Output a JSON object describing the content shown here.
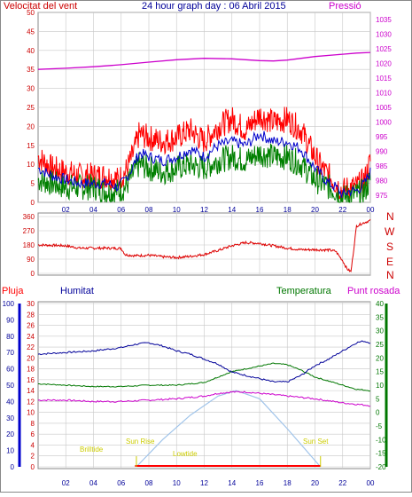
{
  "header": {
    "wind_title": "Velocitat del vent",
    "date_title": "24 hour graph day : 06 Abril 2015",
    "pressure_title": "Pressió"
  },
  "footer": {
    "rain_label": "Pluja",
    "humidity_label": "Humitat",
    "temp_label": "Temperatura",
    "dew_label": "Punt rosada"
  },
  "annotations": {
    "sunrise": "Sun Rise",
    "sunset": "Sun Set",
    "moonrise": "Brilltide",
    "moonset": "Lowtide"
  },
  "colors": {
    "wind_gust": "#ff0000",
    "wind_avg": "#0000cc",
    "wind_min": "#008000",
    "pressure": "#cc00cc",
    "direction": "#dd0000",
    "humidity": "#000099",
    "temperature": "#007700",
    "dewpoint": "#cc00cc",
    "rain": "#ff0000",
    "sun": "#a0c4ea",
    "frame_red": "#cc0000"
  },
  "chart_data": [
    {
      "type": "line",
      "title": "24 hour graph day : 06 Abril 2015",
      "x_ticks": [
        "02",
        "04",
        "06",
        "08",
        "10",
        "12",
        "14",
        "16",
        "18",
        "20",
        "22",
        "00"
      ],
      "x_hours": [
        2,
        4,
        6,
        8,
        10,
        12,
        14,
        16,
        18,
        20,
        22,
        24
      ],
      "y_left_ticks": [
        0,
        5,
        10,
        15,
        20,
        25,
        30,
        35,
        40,
        45,
        50
      ],
      "y_right_ticks": [
        975,
        980,
        985,
        990,
        995,
        1000,
        1005,
        1010,
        1015,
        1020,
        1025,
        1030,
        1035
      ],
      "y_left_range": [
        0,
        50
      ],
      "y_right_range": [
        972.5,
        1037.5
      ],
      "series": [
        {
          "name": "Velocitat del vent",
          "color_key": "wind_gust",
          "x": [
            0,
            1,
            2,
            3,
            4,
            5,
            5.8,
            6.3,
            6.8,
            7.3,
            8,
            9,
            10,
            11,
            12,
            13,
            14,
            15,
            16,
            17,
            18,
            19,
            20,
            20.5,
            21,
            21.5,
            22,
            22.5,
            23,
            23.6,
            24
          ],
          "y": [
            12,
            9,
            8,
            7,
            7,
            7,
            6,
            8,
            12,
            18,
            17,
            16,
            17,
            19,
            16,
            20,
            22,
            19,
            23,
            21,
            22,
            19,
            12,
            9,
            7,
            5,
            3,
            4,
            4,
            6,
            11
          ]
        },
        {
          "x": [
            0,
            1,
            2,
            3,
            4,
            5,
            5.8,
            6.3,
            6.8,
            7.3,
            8,
            9,
            10,
            11,
            12,
            13,
            14,
            15,
            16,
            17,
            18,
            19,
            20,
            20.5,
            21,
            21.5,
            22,
            22.5,
            23,
            23.6,
            24
          ],
          "y": [
            9,
            7,
            6,
            5,
            5,
            5,
            4,
            6,
            9,
            13,
            12,
            11,
            12,
            14,
            12,
            15,
            16,
            15,
            18,
            16,
            16,
            14,
            9,
            7,
            5,
            4,
            2,
            3,
            3,
            5,
            8
          ]
        },
        {
          "x": [
            0,
            1,
            2,
            3,
            4,
            5,
            5.8,
            6.3,
            6.8,
            7.3,
            8,
            9,
            10,
            11,
            12,
            13,
            14,
            15,
            16,
            17,
            18,
            19,
            20,
            20.5,
            21,
            21.5,
            22,
            22.5,
            23,
            23.6,
            24
          ],
          "y": [
            6,
            5,
            4,
            4,
            4,
            3,
            3,
            4,
            7,
            10,
            9,
            8,
            9,
            10,
            9,
            11,
            12,
            11,
            13,
            12,
            12,
            10,
            6,
            5,
            4,
            3,
            1,
            2,
            2,
            3,
            6
          ]
        },
        {
          "name": "Pressió",
          "color_key": "pressure",
          "axis": "right",
          "x": [
            0,
            2,
            4,
            6,
            8,
            10,
            12,
            14,
            16,
            17,
            18,
            20,
            22,
            23,
            24
          ],
          "y": [
            1018,
            1018.4,
            1018.9,
            1019.6,
            1020.5,
            1021.3,
            1021.8,
            1021.6,
            1021.0,
            1020.9,
            1021.2,
            1022.4,
            1023.2,
            1023.6,
            1023.8
          ]
        }
      ]
    },
    {
      "type": "line",
      "y_ticks": [
        0,
        90,
        180,
        270,
        360
      ],
      "y_right_labels": [
        "N",
        "W",
        "S",
        "E",
        "N"
      ],
      "y_range": [
        0,
        360
      ],
      "series": [
        {
          "color_key": "direction",
          "x": [
            0,
            1,
            2,
            3,
            4,
            5,
            6,
            6.3,
            7,
            8,
            9,
            10,
            11,
            12,
            13,
            14,
            15,
            16,
            17,
            18,
            19,
            20,
            21,
            21.5,
            22,
            22.3,
            22.6,
            23,
            23.5,
            24
          ],
          "y": [
            180,
            178,
            175,
            160,
            160,
            160,
            158,
            118,
            112,
            115,
            105,
            100,
            108,
            120,
            145,
            175,
            195,
            190,
            175,
            160,
            150,
            150,
            148,
            140,
            80,
            30,
            10,
            300,
            320,
            335
          ]
        }
      ]
    },
    {
      "type": "line",
      "y_ticks": [
        0,
        2,
        4,
        6,
        8,
        10,
        12,
        14,
        16,
        18,
        20,
        22,
        24,
        26,
        28,
        30
      ],
      "y_range": [
        0,
        30
      ],
      "humidity_ticks": [
        0,
        10,
        20,
        30,
        40,
        50,
        60,
        70,
        80,
        90,
        100
      ],
      "humidity_range": [
        0,
        100
      ],
      "temp_ticks": [
        -20,
        -15,
        -10,
        -5,
        0,
        5,
        10,
        15,
        20,
        25,
        30,
        35,
        40
      ],
      "temp_range": [
        -20,
        40
      ],
      "series": [
        {
          "name": "Humitat",
          "color_key": "humidity",
          "axis": "humidity",
          "x": [
            0,
            2,
            4,
            6,
            7,
            8,
            9,
            10,
            11,
            12,
            13,
            14,
            15,
            16,
            17,
            18,
            19,
            20,
            21,
            22,
            23,
            23.5,
            24
          ],
          "y": [
            69,
            70,
            71,
            73,
            75,
            76,
            74,
            71,
            69,
            66,
            63,
            58,
            56,
            54,
            52,
            52,
            56,
            62,
            66,
            71,
            76,
            77,
            76
          ]
        },
        {
          "name": "Temperatura",
          "color_key": "temperature",
          "axis": "temp",
          "x": [
            0,
            2,
            4,
            6,
            8,
            10,
            11,
            12,
            13,
            14,
            15,
            16,
            17,
            18,
            19,
            20,
            21,
            22,
            23,
            24
          ],
          "y": [
            10.5,
            10,
            9.5,
            9.5,
            10,
            10,
            10.5,
            11,
            13,
            15,
            16,
            17,
            18,
            17.5,
            15.5,
            13,
            11.5,
            10,
            8.5,
            8
          ]
        },
        {
          "name": "Punt rosada",
          "color_key": "dewpoint",
          "axis": "temp",
          "x": [
            0,
            2,
            4,
            6,
            8,
            10,
            12,
            13,
            14,
            15,
            16,
            17,
            18,
            20,
            22,
            24
          ],
          "y": [
            4.5,
            4.5,
            4,
            4,
            4.5,
            5,
            6,
            7,
            7.5,
            7.5,
            7,
            6.5,
            6,
            5,
            3.5,
            2.5
          ]
        },
        {
          "color_key": "sun",
          "axis": "temp",
          "x": [
            7.1,
            9,
            11,
            13,
            14.3,
            16,
            18,
            20.4
          ],
          "y": [
            -20,
            -10,
            -1,
            6,
            8,
            5,
            -6,
            -20
          ]
        }
      ],
      "rain_mm": 0
    }
  ]
}
